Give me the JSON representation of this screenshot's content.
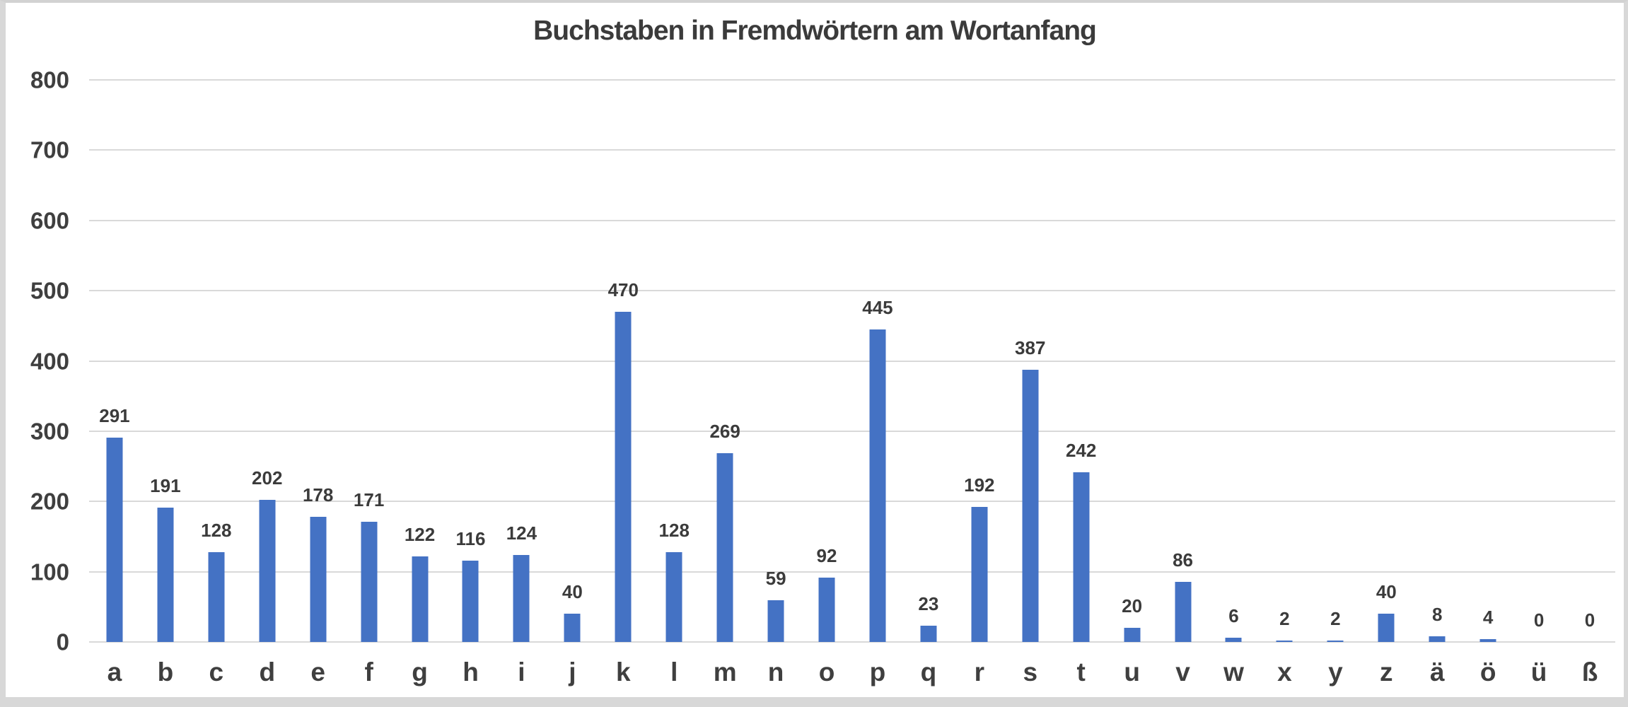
{
  "chart_data": {
    "type": "bar",
    "title": "Buchstaben in Fremdwörtern am Wortanfang",
    "categories": [
      "a",
      "b",
      "c",
      "d",
      "e",
      "f",
      "g",
      "h",
      "i",
      "j",
      "k",
      "l",
      "m",
      "n",
      "o",
      "p",
      "q",
      "r",
      "s",
      "t",
      "u",
      "v",
      "w",
      "x",
      "y",
      "z",
      "ä",
      "ö",
      "ü",
      "ß"
    ],
    "values": [
      291,
      191,
      128,
      202,
      178,
      171,
      122,
      116,
      124,
      40,
      470,
      128,
      269,
      59,
      92,
      445,
      23,
      192,
      387,
      242,
      20,
      86,
      6,
      2,
      2,
      40,
      8,
      4,
      0,
      0
    ],
    "xlabel": "",
    "ylabel": "",
    "ylim": [
      0,
      800
    ],
    "yticks": [
      0,
      100,
      200,
      300,
      400,
      500,
      600,
      700,
      800
    ],
    "grid": true,
    "legend": false,
    "show_value_labels": true,
    "bar_color": "#4472C4",
    "text_color": "#3b3b3b",
    "gridline_color": "#D9D9D9",
    "background_color": "#FFFFFF"
  }
}
